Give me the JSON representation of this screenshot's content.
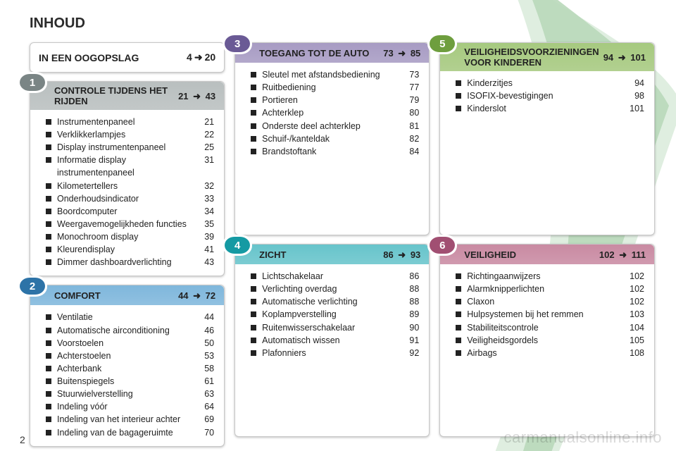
{
  "page": {
    "title": "INHOUD",
    "number": "2",
    "watermark": "carmanualsonline.info"
  },
  "intro": {
    "label": "IN EEN OOGOPSLAG",
    "range_from": "4",
    "range_to": "20",
    "arrow": "➜"
  },
  "colors": {
    "section1_bg": "#b9bfbf",
    "section1_badge": "#7a8585",
    "section2_bg": "#7fb7dc",
    "section2_badge": "#2d73a7",
    "section3_bg": "#a79bc3",
    "section3_badge": "#6a5a95",
    "section4_bg": "#67c4cb",
    "section4_badge": "#159aa3",
    "section5_bg": "#a6c97f",
    "section5_badge": "#6e9e3e",
    "section6_bg": "#c98aa2",
    "section6_badge": "#a14f72",
    "swoosh_outer": "#dfeee0",
    "swoosh_inner": "#b9d8ba"
  },
  "sections": [
    {
      "num": "1",
      "title": "CONTROLE TIJDENS HET RIJDEN",
      "range_from": "21",
      "range_to": "43",
      "items": [
        {
          "label": "Instrumentenpaneel",
          "pg": "21"
        },
        {
          "label": "Verklikkerlampjes",
          "pg": "22"
        },
        {
          "label": "Display instrumentenpaneel",
          "pg": "25"
        },
        {
          "label": "Informatie display instrumentenpaneel",
          "pg": "31"
        },
        {
          "label": "Kilometertellers",
          "pg": "32"
        },
        {
          "label": "Onderhoudsindicator",
          "pg": "33"
        },
        {
          "label": "Boordcomputer",
          "pg": "34"
        },
        {
          "label": "Weergavemogelijkheden functies",
          "pg": "35"
        },
        {
          "label": "Monochroom display",
          "pg": "39"
        },
        {
          "label": "Kleurendisplay",
          "pg": "41"
        },
        {
          "label": "Dimmer dashboardverlichting",
          "pg": "43"
        }
      ]
    },
    {
      "num": "2",
      "title": "COMFORT",
      "range_from": "44",
      "range_to": "72",
      "items": [
        {
          "label": "Ventilatie",
          "pg": "44"
        },
        {
          "label": "Automatische airconditioning",
          "pg": "46"
        },
        {
          "label": "Voorstoelen",
          "pg": "50"
        },
        {
          "label": "Achterstoelen",
          "pg": "53"
        },
        {
          "label": "Achterbank",
          "pg": "58"
        },
        {
          "label": "Buitenspiegels",
          "pg": "61"
        },
        {
          "label": "Stuurwielverstelling",
          "pg": "63"
        },
        {
          "label": "Indeling vóór",
          "pg": "64"
        },
        {
          "label": "Indeling van het interieur achter",
          "pg": "69"
        },
        {
          "label": "Indeling van de bagageruimte",
          "pg": "70"
        }
      ]
    },
    {
      "num": "3",
      "title": "TOEGANG TOT DE AUTO",
      "range_from": "73",
      "range_to": "85",
      "items": [
        {
          "label": "Sleutel met afstandsbediening",
          "pg": "73"
        },
        {
          "label": "Ruitbediening",
          "pg": "77"
        },
        {
          "label": "Portieren",
          "pg": "79"
        },
        {
          "label": "Achterklep",
          "pg": "80"
        },
        {
          "label": "Onderste deel achterklep",
          "pg": "81"
        },
        {
          "label": "Schuif-/kanteldak",
          "pg": "82"
        },
        {
          "label": "Brandstoftank",
          "pg": "84"
        }
      ]
    },
    {
      "num": "4",
      "title": "ZICHT",
      "range_from": "86",
      "range_to": "93",
      "items": [
        {
          "label": "Lichtschakelaar",
          "pg": "86"
        },
        {
          "label": "Verlichting overdag",
          "pg": "88"
        },
        {
          "label": "Automatische verlichting",
          "pg": "88"
        },
        {
          "label": "Koplampverstelling",
          "pg": "89"
        },
        {
          "label": "Ruitenwisserschakelaar",
          "pg": "90"
        },
        {
          "label": "Automatisch wissen",
          "pg": "91"
        },
        {
          "label": "Plafonniers",
          "pg": "92"
        }
      ]
    },
    {
      "num": "5",
      "title": "VEILIGHEIDSVOORZIENINGEN VOOR KINDEREN",
      "range_from": "94",
      "range_to": "101",
      "items": [
        {
          "label": "Kinderzitjes",
          "pg": "94"
        },
        {
          "label": "ISOFIX-bevestigingen",
          "pg": "98"
        },
        {
          "label": "Kinderslot",
          "pg": "101"
        }
      ]
    },
    {
      "num": "6",
      "title": "VEILIGHEID",
      "range_from": "102",
      "range_to": "111",
      "items": [
        {
          "label": "Richtingaanwijzers",
          "pg": "102"
        },
        {
          "label": "Alarmknipperlichten",
          "pg": "102"
        },
        {
          "label": "Claxon",
          "pg": "102"
        },
        {
          "label": "Hulpsystemen bij het remmen",
          "pg": "103"
        },
        {
          "label": "Stabiliteitscontrole",
          "pg": "104"
        },
        {
          "label": "Veiligheidsgordels",
          "pg": "105"
        },
        {
          "label": "Airbags",
          "pg": "108"
        }
      ]
    }
  ]
}
